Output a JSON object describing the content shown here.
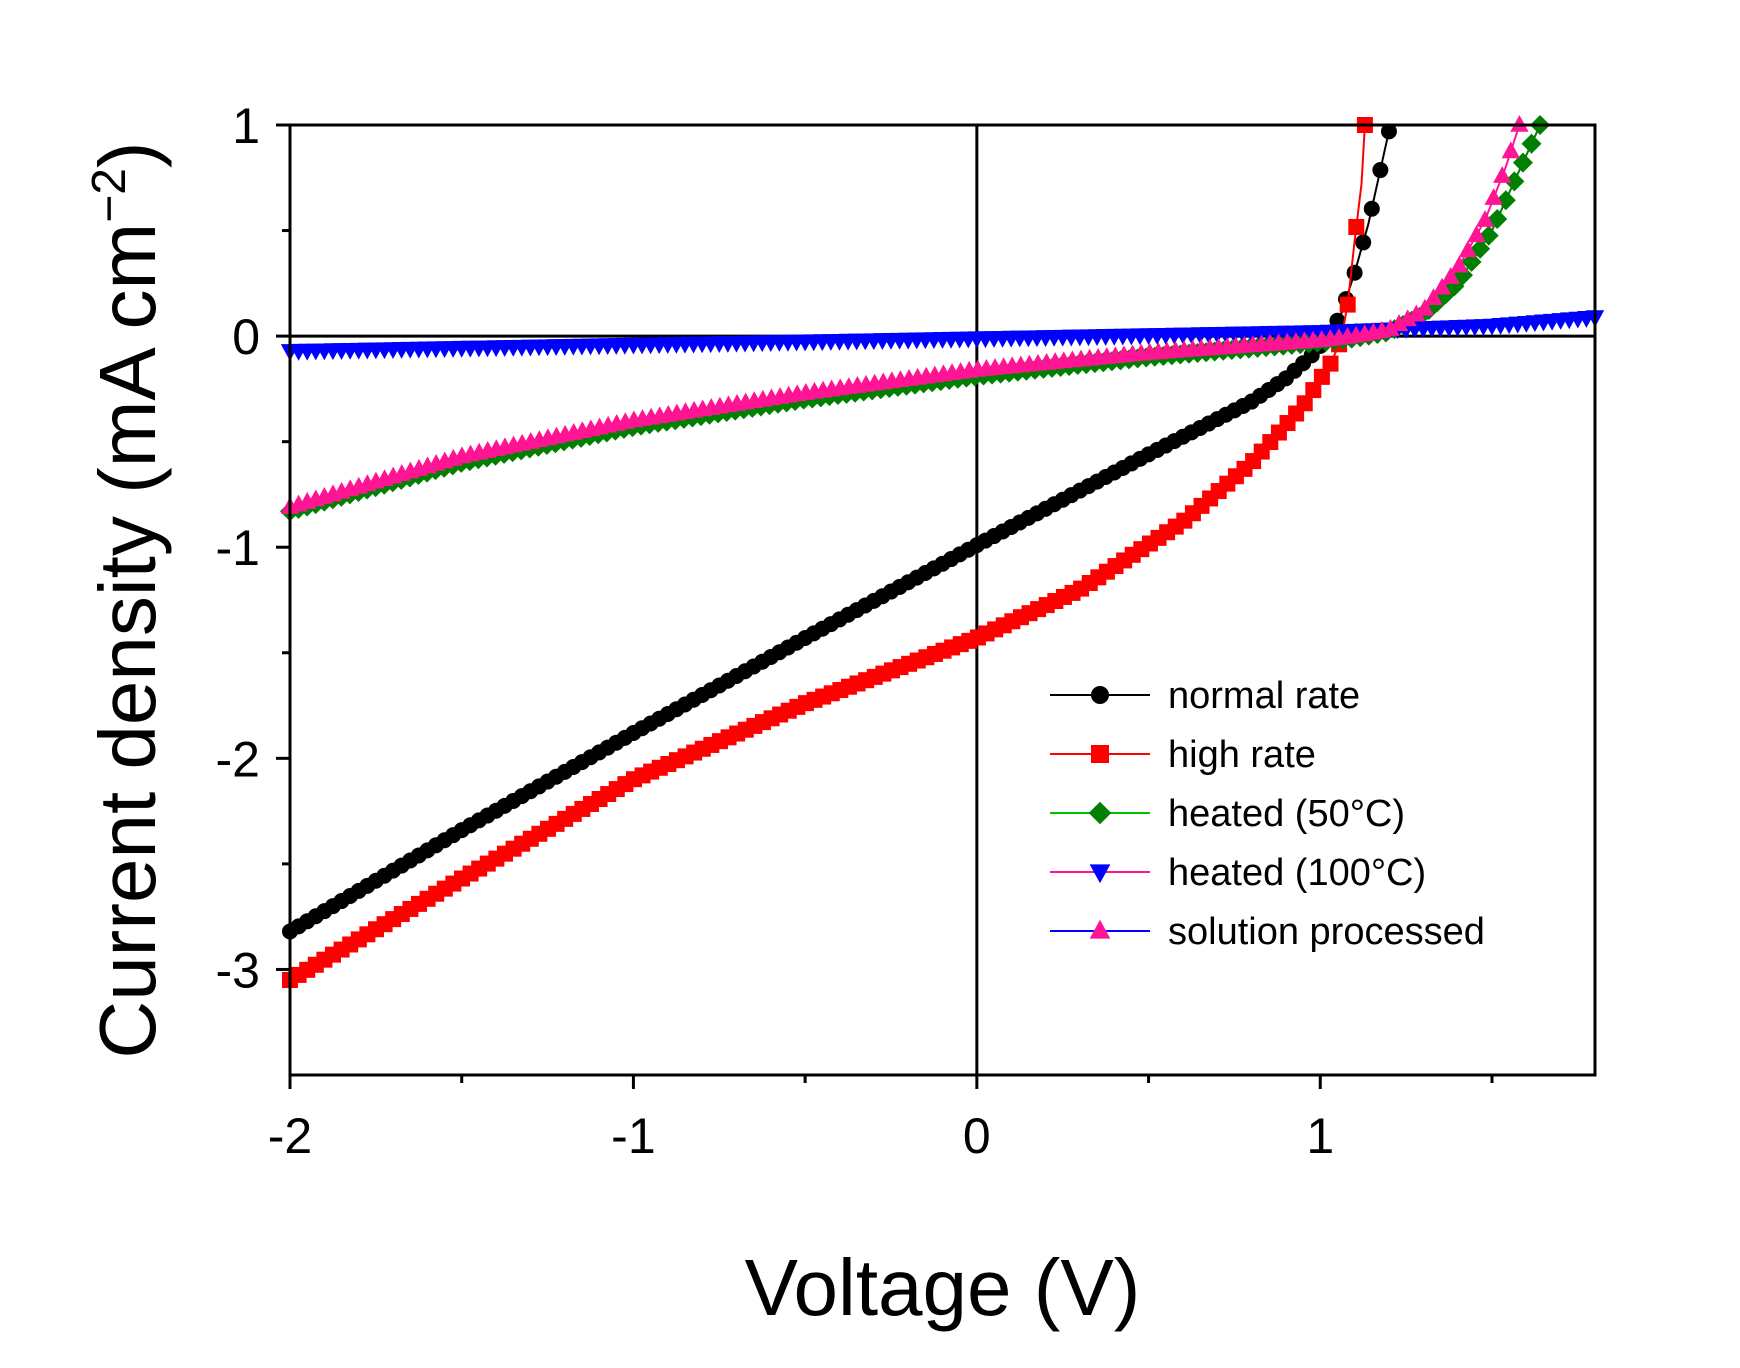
{
  "chart_data": {
    "type": "line",
    "xlabel": "Voltage (V)",
    "ylabel_main": "Current density (mA cm",
    "ylabel_sup": "−2",
    "ylabel_close": ")",
    "xlim": [
      -2,
      1.8
    ],
    "ylim": [
      -3.5,
      1
    ],
    "x_ticks": [
      -2,
      -1,
      0,
      1
    ],
    "x_tick_labels": [
      "-2",
      "-1",
      "0",
      "1"
    ],
    "x_minor_ticks": [
      -1.5,
      -0.5,
      0.5,
      1.5
    ],
    "y_ticks": [
      -3,
      -2,
      -1,
      0,
      1
    ],
    "y_tick_labels": [
      "-3",
      "-2",
      "-1",
      "0",
      "1"
    ],
    "y_minor_ticks": [
      -2.5,
      -1.5,
      -0.5,
      0.5
    ],
    "zero_lines": true,
    "grid": false,
    "legend_position": "bottom-right",
    "series": [
      {
        "name": "normal rate",
        "color": "#000000",
        "marker": "circle",
        "points": [
          [
            -2,
            -2.82
          ],
          [
            -1.5,
            -2.34
          ],
          [
            -1,
            -1.88
          ],
          [
            -0.5,
            -1.43
          ],
          [
            0,
            -0.99
          ],
          [
            0.5,
            -0.56
          ],
          [
            0.8,
            -0.31
          ],
          [
            0.9,
            -0.2
          ],
          [
            0.97,
            -0.1
          ],
          [
            1.02,
            -0.01
          ],
          [
            1.06,
            0.1
          ],
          [
            1.1,
            0.3
          ],
          [
            1.14,
            0.53
          ],
          [
            1.17,
            0.75
          ],
          [
            1.2,
            0.97
          ]
        ]
      },
      {
        "name": "high rate",
        "color": "#ff0000",
        "marker": "square",
        "points": [
          [
            -2,
            -3.05
          ],
          [
            -1.5,
            -2.57
          ],
          [
            -1,
            -2.1
          ],
          [
            -0.5,
            -1.74
          ],
          [
            0,
            -1.43
          ],
          [
            0.3,
            -1.2
          ],
          [
            0.6,
            -0.88
          ],
          [
            0.8,
            -0.6
          ],
          [
            0.95,
            -0.33
          ],
          [
            1.03,
            -0.13
          ],
          [
            1.06,
            -0.02
          ],
          [
            1.08,
            0.15
          ],
          [
            1.1,
            0.45
          ],
          [
            1.12,
            0.72
          ],
          [
            1.13,
            1.0
          ]
        ]
      },
      {
        "name": "heated (50°C)",
        "color": "#008000",
        "marker": "diamond",
        "points": [
          [
            -2,
            -0.83
          ],
          [
            -1.5,
            -0.6
          ],
          [
            -1,
            -0.43
          ],
          [
            -0.5,
            -0.3
          ],
          [
            0,
            -0.19
          ],
          [
            0.5,
            -0.1
          ],
          [
            1,
            -0.03
          ],
          [
            1.1,
            -0.01
          ],
          [
            1.2,
            0.02
          ],
          [
            1.3,
            0.1
          ],
          [
            1.4,
            0.25
          ],
          [
            1.5,
            0.5
          ],
          [
            1.57,
            0.75
          ],
          [
            1.64,
            1.0
          ]
        ]
      },
      {
        "name": "heated (100°C)",
        "color": "#0000ff",
        "marker": "triangle-down",
        "points": [
          [
            -2,
            -0.07
          ],
          [
            -1,
            -0.04
          ],
          [
            0,
            -0.01
          ],
          [
            1,
            0.02
          ],
          [
            1.5,
            0.05
          ],
          [
            1.8,
            0.09
          ]
        ]
      },
      {
        "name": "solution processed",
        "color": "#ff1493",
        "marker": "triangle-up",
        "points": [
          [
            -2,
            -0.81
          ],
          [
            -1.5,
            -0.57
          ],
          [
            -1,
            -0.4
          ],
          [
            -0.5,
            -0.27
          ],
          [
            0,
            -0.16
          ],
          [
            0.5,
            -0.08
          ],
          [
            1,
            -0.02
          ],
          [
            1.1,
            0.0
          ],
          [
            1.2,
            0.03
          ],
          [
            1.3,
            0.12
          ],
          [
            1.4,
            0.32
          ],
          [
            1.48,
            0.55
          ],
          [
            1.54,
            0.8
          ],
          [
            1.58,
            1.0
          ]
        ]
      }
    ],
    "legend": [
      {
        "label": "normal rate",
        "line_color": "#000000",
        "marker": "circle",
        "marker_color": "#000000"
      },
      {
        "label": "high rate",
        "line_color": "#ff0000",
        "marker": "square",
        "marker_color": "#ff0000"
      },
      {
        "label": "heated (50°C)",
        "line_color": "#00c000",
        "marker": "diamond",
        "marker_color": "#008000"
      },
      {
        "label": "heated (100°C)",
        "line_color": "#ff1493",
        "marker": "triangle-down",
        "marker_color": "#0000ff"
      },
      {
        "label": "solution processed",
        "line_color": "#0000ff",
        "marker": "triangle-up",
        "marker_color": "#ff1493"
      }
    ]
  }
}
